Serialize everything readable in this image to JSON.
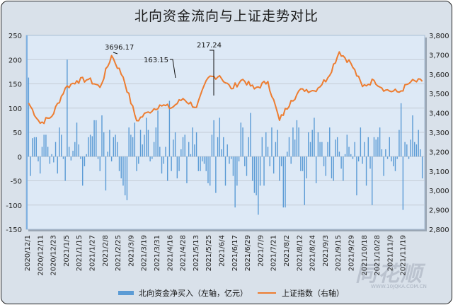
{
  "chart_data": {
    "type": "bar+line",
    "title": "北向资金流向与上证走势对比",
    "left_axis": {
      "label": "北向资金净买入（左轴，亿元）",
      "ticks": [
        "250",
        "200",
        "150",
        "100",
        "50",
        "0",
        "-50",
        "-100",
        "-150"
      ],
      "range": [
        -150,
        250
      ]
    },
    "right_axis": {
      "label": "上证指数（右轴）",
      "ticks": [
        "3,800",
        "3,700",
        "3,600",
        "3,500",
        "3,400",
        "3,300",
        "3,200",
        "3,100",
        "3,000",
        "2,900",
        "2,800"
      ],
      "range": [
        2800,
        3800
      ]
    },
    "x_tick_labels": [
      "2020/12/1",
      "2020/12/11",
      "2020/12/23",
      "2021/1/5",
      "2021/1/15",
      "2021/1/27",
      "2021/2/8",
      "2021/2/25",
      "2021/3/9",
      "2021/3/19",
      "2021/3/31",
      "2021/4/16",
      "2021/4/28",
      "2021/5/13",
      "2021/5/25",
      "2021/6/4",
      "2021/6/17",
      "2021/6/29",
      "2021/7/9",
      "2021/7/21",
      "2021/8/2",
      "2021/8/12",
      "2021/8/24",
      "2021/9/3",
      "2021/9/15",
      "2021/9/29",
      "2021/10/18",
      "2021/10/28",
      "2021/11/9",
      "2021/11/19"
    ],
    "annotations": [
      {
        "text": "3696.17",
        "series": "上证指数",
        "date": "2021/2/18"
      },
      {
        "text": "163.15",
        "series": "北向资金净买入",
        "date": "2021/4/15"
      },
      {
        "text": "217.24",
        "series": "北向资金净买入",
        "date": "2021/5/26"
      }
    ],
    "series": [
      {
        "name": "北向资金净买入（左轴，亿元）",
        "type": "bar",
        "axis": "left",
        "color": "#5b9bd5",
        "values": [
          163,
          -40,
          38,
          40,
          40,
          -10,
          -35,
          20,
          45,
          45,
          20,
          -15,
          5,
          -12,
          30,
          -35,
          60,
          45,
          -5,
          -50,
          200,
          20,
          -8,
          12,
          30,
          70,
          25,
          -5,
          -60,
          -20,
          5,
          40,
          45,
          42,
          75,
          75,
          -5,
          -30,
          85,
          50,
          -70,
          10,
          55,
          -10,
          40,
          45,
          30,
          -30,
          -45,
          -60,
          -80,
          -90,
          60,
          45,
          40,
          70,
          -30,
          -15,
          55,
          25,
          45,
          80,
          55,
          -10,
          -5,
          30,
          60,
          95,
          20,
          -35,
          -15,
          20,
          -50,
          115,
          -30,
          35,
          50,
          -45,
          -30,
          15,
          40,
          45,
          -55,
          30,
          5,
          60,
          25,
          50,
          -30,
          -30,
          -10,
          -15,
          -30,
          -55,
          -60,
          45,
          75,
          -75,
          40,
          80,
          15,
          40,
          -60,
          25,
          -15,
          -5,
          -40,
          -105,
          -60,
          -10,
          70,
          60,
          -20,
          -40,
          40,
          90,
          -50,
          -75,
          -80,
          -120,
          -60,
          40,
          -60,
          50,
          20,
          -20,
          60,
          -35,
          30,
          55,
          -50,
          -20,
          -105,
          -105,
          10,
          40,
          -15,
          60,
          35,
          75,
          60,
          -30,
          -30,
          -100,
          -45,
          50,
          30,
          55,
          80,
          -55,
          50,
          30,
          30,
          -20,
          -40,
          30,
          60,
          -45,
          -50,
          35,
          40,
          10,
          -25,
          -50,
          5,
          45,
          20,
          5,
          -5,
          30,
          -80,
          -10,
          60,
          -15,
          30,
          -60,
          40,
          -25,
          -100,
          40,
          35,
          40,
          60,
          15,
          -40,
          15,
          -5,
          40,
          -10,
          -20,
          -30,
          -5,
          55,
          110,
          -110,
          30,
          25,
          -5,
          35,
          85,
          30,
          25,
          55,
          15,
          -45
        ],
        "notes": "approximate daily net buy values read from chart"
      },
      {
        "name": "上证指数（右轴）",
        "type": "line",
        "axis": "right",
        "color": "#ed7d31",
        "key_points": [
          [
            "2020/12/1",
            3451
          ],
          [
            "2020/12/11",
            3347
          ],
          [
            "2020/12/23",
            3382
          ],
          [
            "2021/1/5",
            3528
          ],
          [
            "2021/1/15",
            3566
          ],
          [
            "2021/1/27",
            3573
          ],
          [
            "2021/2/8",
            3532
          ],
          [
            "2021/2/18",
            3696
          ],
          [
            "2021/2/25",
            3585
          ],
          [
            "2021/3/9",
            3360
          ],
          [
            "2021/3/19",
            3405
          ],
          [
            "2021/3/31",
            3441
          ],
          [
            "2021/4/16",
            3426
          ],
          [
            "2021/4/28",
            3474
          ],
          [
            "2021/5/13",
            3429
          ],
          [
            "2021/5/25",
            3581
          ],
          [
            "2021/6/4",
            3592
          ],
          [
            "2021/6/17",
            3525
          ],
          [
            "2021/6/29",
            3573
          ],
          [
            "2021/7/9",
            3524
          ],
          [
            "2021/7/21",
            3562
          ],
          [
            "2021/7/28",
            3362
          ],
          [
            "2021/8/2",
            3464
          ],
          [
            "2021/8/12",
            3524
          ],
          [
            "2021/8/24",
            3514
          ],
          [
            "2021/9/3",
            3581
          ],
          [
            "2021/9/13",
            3715
          ],
          [
            "2021/9/15",
            3656
          ],
          [
            "2021/9/29",
            3536
          ],
          [
            "2021/10/18",
            3568
          ],
          [
            "2021/10/28",
            3518
          ],
          [
            "2021/11/9",
            3507
          ],
          [
            "2021/11/19",
            3560
          ],
          [
            "2021/11/30",
            3563
          ]
        ]
      }
    ]
  },
  "title": "北向资金流向与上证走势对比",
  "legend": {
    "bar_label": "北向资金净买入（左轴，亿元）",
    "line_label": "上证指数（右轴）"
  },
  "watermark": {
    "brand": "同花顺",
    "url": "WWW.10JQKA.COM.CN"
  }
}
